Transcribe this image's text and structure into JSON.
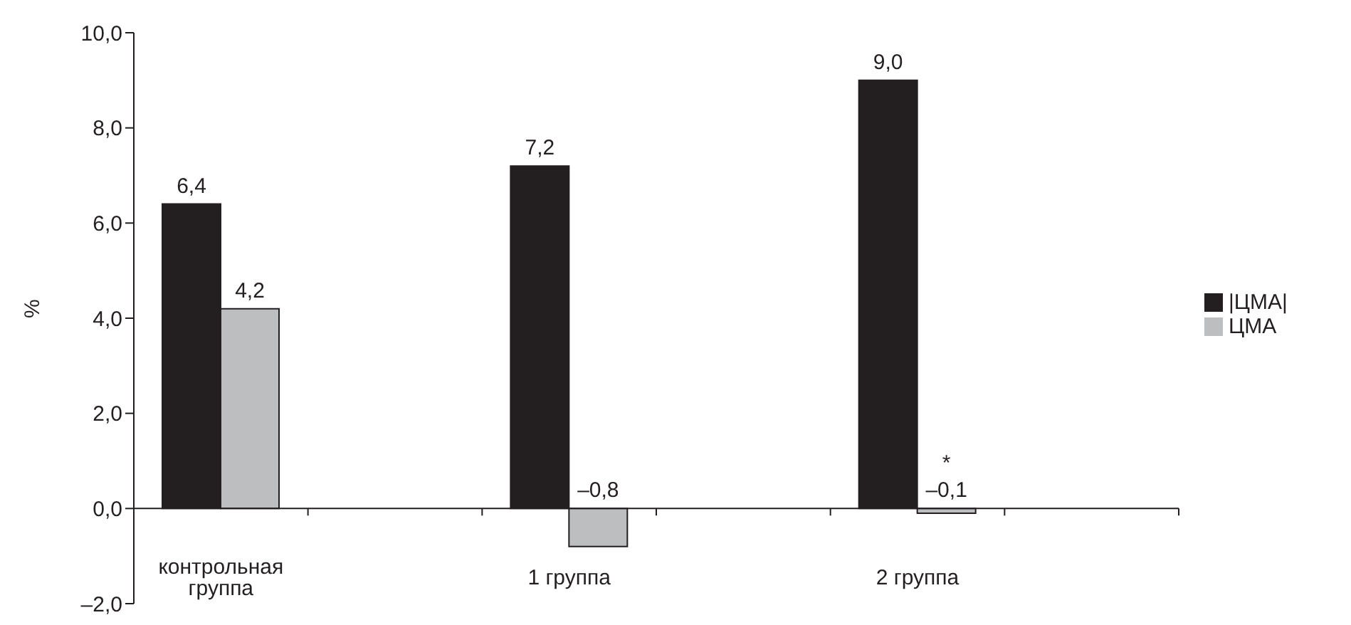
{
  "chart_data": {
    "type": "bar",
    "ylabel": "%",
    "categories": [
      "контрольная группа",
      null,
      "1 группа",
      null,
      "2 группа",
      null
    ],
    "series": [
      {
        "name": "|ЦМА|",
        "color": "#231f20",
        "values": [
          6.4,
          null,
          7.2,
          null,
          9.0,
          null
        ],
        "value_labels": [
          "6,4",
          null,
          "7,2",
          null,
          "9,0",
          null
        ]
      },
      {
        "name": "ЦМА",
        "color": "#bcbec0",
        "values": [
          4.2,
          null,
          -0.8,
          null,
          -0.1,
          null
        ],
        "value_labels": [
          "4,2",
          null,
          "–0,8",
          null,
          "–0,1",
          null
        ]
      }
    ],
    "ylim": [
      -2,
      10
    ],
    "yticks": [
      {
        "value": -2,
        "label": "–2,0"
      },
      {
        "value": 0,
        "label": "0,0"
      },
      {
        "value": 2,
        "label": "2,0"
      },
      {
        "value": 4,
        "label": "4,0"
      },
      {
        "value": 6,
        "label": "6,0"
      },
      {
        "value": 8,
        "label": "8,0"
      },
      {
        "value": 10,
        "label": "10,0"
      }
    ],
    "annotations": [
      {
        "text": "*",
        "x": "2 группа",
        "y": -0.1
      }
    ],
    "legend": "right",
    "grid": false
  }
}
